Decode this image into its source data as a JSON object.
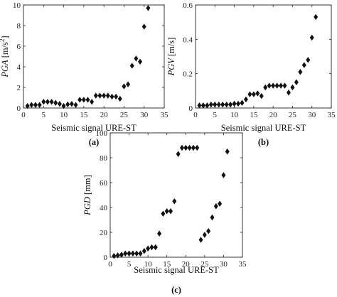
{
  "chart_data": [
    {
      "type": "scatter",
      "panel_label": "(a)",
      "xlabel": "Seismic signal URE-ST",
      "ylabel": "PGA [m/s²]",
      "ylabel_var": "PGA",
      "ylabel_unit": " [m/s",
      "ylabel_sup": "2",
      "ylabel_end": "]",
      "xlim": [
        0,
        35
      ],
      "ylim": [
        0,
        10
      ],
      "xticks": [
        0,
        5,
        10,
        15,
        20,
        25,
        30,
        35
      ],
      "yticks": [
        0,
        2,
        4,
        6,
        8,
        10
      ],
      "grid": false,
      "marker": "diamond",
      "x": [
        1,
        2,
        3,
        4,
        5,
        6,
        7,
        8,
        9,
        10,
        11,
        12,
        13,
        14,
        15,
        16,
        17,
        18,
        19,
        20,
        21,
        22,
        23,
        24,
        25,
        26,
        27,
        28,
        29,
        30,
        31
      ],
      "y": [
        0.2,
        0.3,
        0.3,
        0.3,
        0.6,
        0.6,
        0.6,
        0.5,
        0.4,
        0.2,
        0.35,
        0.4,
        0.3,
        0.8,
        0.8,
        0.8,
        0.6,
        1.2,
        1.2,
        1.2,
        1.2,
        1.1,
        1.1,
        0.9,
        2.1,
        2.3,
        4.1,
        4.8,
        4.5,
        7.9,
        9.7
      ]
    },
    {
      "type": "scatter",
      "panel_label": "(b)",
      "xlabel": "Seismic signal URE-ST",
      "ylabel": "PGV [m/s]",
      "ylabel_var": "PGV",
      "ylabel_unit": " [m/s]",
      "xlim": [
        0,
        35
      ],
      "ylim": [
        0,
        0.6
      ],
      "xticks": [
        0,
        5,
        10,
        15,
        20,
        25,
        30,
        35
      ],
      "yticks": [
        0,
        0.2,
        0.4,
        0.6
      ],
      "grid": false,
      "marker": "diamond",
      "x": [
        1,
        2,
        3,
        4,
        5,
        6,
        7,
        8,
        9,
        10,
        11,
        12,
        13,
        14,
        15,
        16,
        17,
        18,
        19,
        20,
        21,
        22,
        23,
        24,
        25,
        26,
        27,
        28,
        29,
        30,
        31
      ],
      "y": [
        0.015,
        0.015,
        0.015,
        0.02,
        0.02,
        0.02,
        0.02,
        0.02,
        0.02,
        0.025,
        0.025,
        0.03,
        0.05,
        0.08,
        0.08,
        0.085,
        0.07,
        0.12,
        0.13,
        0.13,
        0.13,
        0.13,
        0.13,
        0.09,
        0.12,
        0.15,
        0.21,
        0.25,
        0.28,
        0.41,
        0.53
      ]
    },
    {
      "type": "scatter",
      "panel_label": "(c)",
      "xlabel": "Seismic signal URE-ST",
      "ylabel": "PGD [mm]",
      "ylabel_var": "PGD",
      "ylabel_unit": " [mm]",
      "xlim": [
        0,
        35
      ],
      "ylim": [
        0,
        100
      ],
      "xticks": [
        0,
        5,
        10,
        15,
        20,
        25,
        30,
        35
      ],
      "yticks": [
        0,
        20,
        40,
        60,
        80,
        100
      ],
      "grid": false,
      "marker": "diamond",
      "x": [
        1,
        2,
        3,
        4,
        5,
        6,
        7,
        8,
        9,
        10,
        11,
        12,
        13,
        14,
        15,
        16,
        17,
        18,
        19,
        20,
        21,
        22,
        23,
        24,
        25,
        26,
        27,
        28,
        29,
        30,
        31
      ],
      "y": [
        1,
        1.5,
        2,
        3,
        3,
        3,
        3,
        3,
        5,
        7,
        8,
        8,
        19,
        35,
        37,
        37,
        45,
        83,
        88,
        88,
        88,
        88,
        88,
        14,
        18,
        21,
        32,
        41,
        43,
        66,
        85
      ]
    }
  ]
}
